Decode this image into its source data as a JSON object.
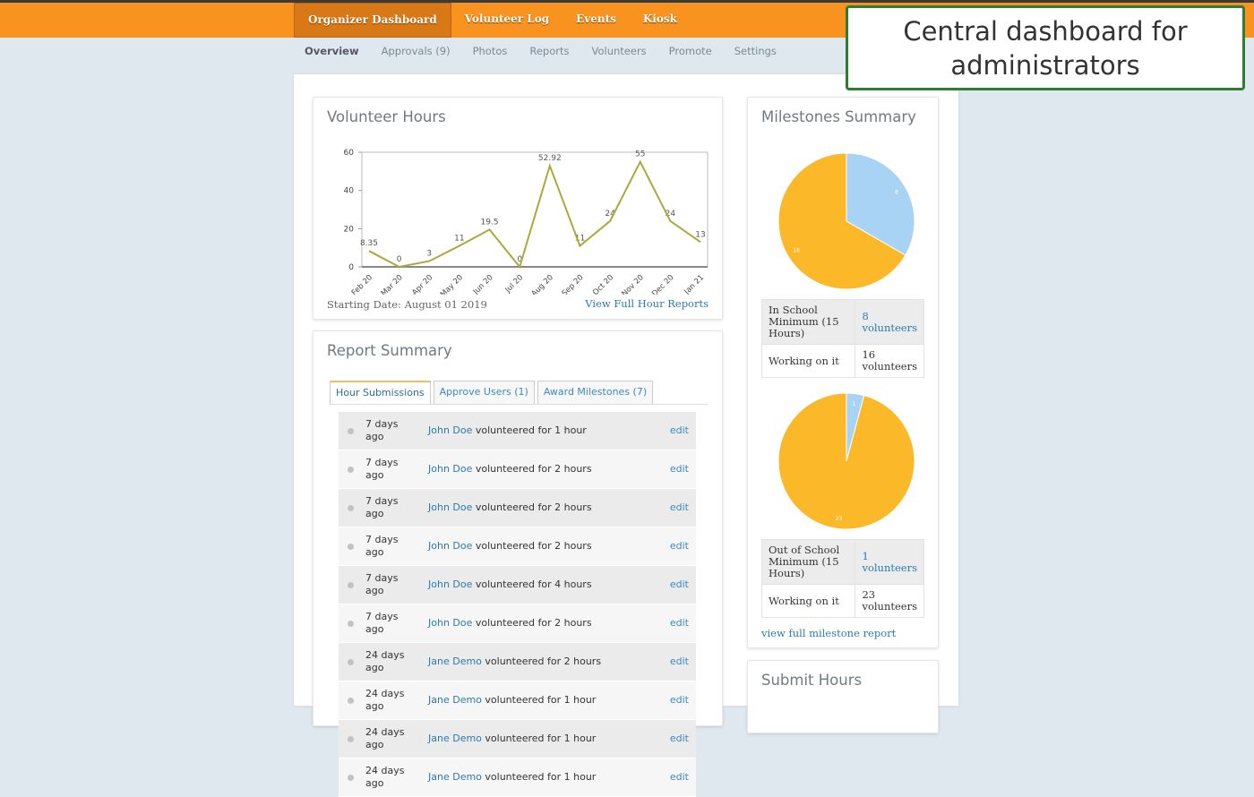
{
  "nav": {
    "items": [
      "Organizer Dashboard",
      "Volunteer Log",
      "Events",
      "Kiosk"
    ]
  },
  "subnav": {
    "items": [
      "Overview",
      "Approvals (9)",
      "Photos",
      "Reports",
      "Volunteers",
      "Promote",
      "Settings"
    ]
  },
  "callout": {
    "text": "Central dashboard for administrators"
  },
  "volunteer_hours": {
    "title": "Volunteer Hours",
    "chart_data": {
      "type": "line",
      "categories": [
        "Feb 20",
        "Mar 20",
        "Apr 20",
        "May 20",
        "Jun 20",
        "Jul 20",
        "Aug 20",
        "Sep 20",
        "Oct 20",
        "Nov 20",
        "Dec 20",
        "Jan 21"
      ],
      "values": [
        8.35,
        0,
        3,
        11,
        19.5,
        0,
        52.92,
        11,
        24,
        55,
        24,
        13
      ],
      "color": "#a9a93c",
      "ylim": [
        0,
        60
      ],
      "yticks": [
        0,
        20,
        40,
        60
      ],
      "grid": false
    },
    "starting_date": "Starting Date: August 01 2019",
    "link": "View Full Hour Reports"
  },
  "report_summary": {
    "title": "Report Summary",
    "tabs": [
      "Hour Submissions",
      "Approve Users (1)",
      "Award Milestones (7)"
    ],
    "rows": [
      {
        "time": "7 days ago",
        "name": "John Doe",
        "text": "volunteered for 1 hour",
        "action": "edit"
      },
      {
        "time": "7 days ago",
        "name": "John Doe",
        "text": "volunteered for 2 hours",
        "action": "edit"
      },
      {
        "time": "7 days ago",
        "name": "John Doe",
        "text": "volunteered for 2 hours",
        "action": "edit"
      },
      {
        "time": "7 days ago",
        "name": "John Doe",
        "text": "volunteered for 2 hours",
        "action": "edit"
      },
      {
        "time": "7 days ago",
        "name": "John Doe",
        "text": "volunteered for 4 hours",
        "action": "edit"
      },
      {
        "time": "7 days ago",
        "name": "John Doe",
        "text": "volunteered for 2 hours",
        "action": "edit"
      },
      {
        "time": "24 days ago",
        "name": "Jane Demo",
        "text": "volunteered for 2 hours",
        "action": "edit"
      },
      {
        "time": "24 days ago",
        "name": "Jane Demo",
        "text": "volunteered for 1 hour",
        "action": "edit"
      },
      {
        "time": "24 days ago",
        "name": "Jane Demo",
        "text": "volunteered for 1 hour",
        "action": "edit"
      },
      {
        "time": "24 days ago",
        "name": "Jane Demo",
        "text": "volunteered for 1 hour",
        "action": "edit"
      }
    ]
  },
  "milestones": {
    "title": "Milestones Summary",
    "charts": [
      {
        "chart_data": {
          "type": "pie",
          "values": [
            8,
            16
          ],
          "colors": [
            "#a9d3f5",
            "#fbb829"
          ]
        },
        "table": [
          [
            "In School Minimum (15 Hours)",
            "8 volunteers"
          ],
          [
            "Working on it",
            "16 volunteers"
          ]
        ]
      },
      {
        "chart_data": {
          "type": "pie",
          "values": [
            1,
            23
          ],
          "colors": [
            "#a9d3f5",
            "#fbb829"
          ]
        },
        "table": [
          [
            "Out of School Minimum (15 Hours)",
            "1 volunteers"
          ],
          [
            "Working on it",
            "23 volunteers"
          ]
        ]
      }
    ],
    "link": "view full milestone report"
  },
  "submit_hours": {
    "title": "Submit Hours"
  }
}
